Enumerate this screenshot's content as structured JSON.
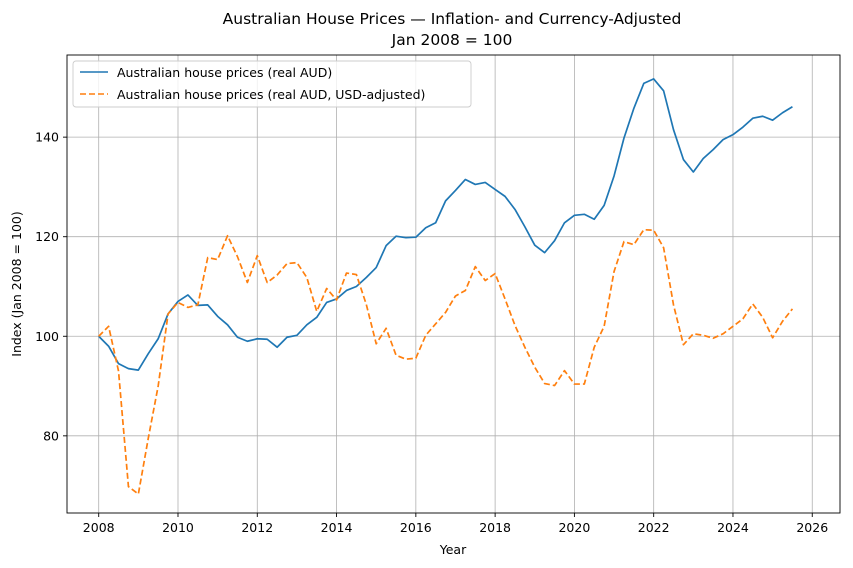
{
  "chart_data": {
    "type": "line",
    "title": "Australian House Prices — Inflation- and Currency-Adjusted",
    "subtitle": "Jan 2008 = 100",
    "xlabel": "Year",
    "ylabel": "Index (Jan 2008 = 100)",
    "xlim": [
      2007.2,
      2026.7
    ],
    "ylim": [
      64.5,
      156.5
    ],
    "xticks": [
      2008,
      2010,
      2012,
      2014,
      2016,
      2018,
      2020,
      2022,
      2024,
      2026
    ],
    "yticks": [
      80,
      100,
      120,
      140
    ],
    "grid": true,
    "legend_position": "top-left",
    "x": [
      2008.0,
      2008.25,
      2008.5,
      2008.75,
      2009.0,
      2009.25,
      2009.5,
      2009.75,
      2010.0,
      2010.25,
      2010.5,
      2010.75,
      2011.0,
      2011.25,
      2011.5,
      2011.75,
      2012.0,
      2012.25,
      2012.5,
      2012.75,
      2013.0,
      2013.25,
      2013.5,
      2013.75,
      2014.0,
      2014.25,
      2014.5,
      2014.75,
      2015.0,
      2015.25,
      2015.5,
      2015.75,
      2016.0,
      2016.25,
      2016.5,
      2016.75,
      2017.0,
      2017.25,
      2017.5,
      2017.75,
      2018.0,
      2018.25,
      2018.5,
      2018.75,
      2019.0,
      2019.25,
      2019.5,
      2019.75,
      2020.0,
      2020.25,
      2020.5,
      2020.75,
      2021.0,
      2021.25,
      2021.5,
      2021.75,
      2022.0,
      2022.25,
      2022.5,
      2022.75,
      2023.0,
      2023.25,
      2023.5,
      2023.75,
      2024.0,
      2024.25,
      2024.5,
      2024.75,
      2025.0,
      2025.25,
      2025.5
    ],
    "series": [
      {
        "name": "Australian house prices (real AUD)",
        "color": "#1f77b4",
        "style": "solid",
        "values": [
          100,
          98,
          94.5,
          93.5,
          93.2,
          96.5,
          99.5,
          104.5,
          107,
          108.3,
          106.2,
          106.3,
          104,
          102.3,
          99.8,
          99,
          99.5,
          99.4,
          97.8,
          99.8,
          100.2,
          102.3,
          103.8,
          106.8,
          107.5,
          109.2,
          110,
          111.8,
          113.8,
          118.2,
          120.1,
          119.8,
          119.9,
          121.8,
          122.8,
          127.2,
          129.3,
          131.5,
          130.5,
          130.9,
          129.5,
          128.1,
          125.5,
          122,
          118.3,
          116.8,
          119.2,
          122.8,
          124.3,
          124.5,
          123.5,
          126.3,
          132.2,
          139.8,
          145.8,
          150.8,
          151.7,
          149.3,
          141.5,
          135.5,
          133,
          135.7,
          137.5,
          139.5,
          140.5,
          142,
          143.8,
          144.2,
          143.4,
          144.9,
          146.1
        ]
      },
      {
        "name": "Australian house prices (real AUD, USD-adjusted)",
        "color": "#ff7f0e",
        "style": "dashed",
        "values": [
          100,
          102,
          93,
          69.8,
          68.3,
          79.5,
          90,
          104.5,
          106.8,
          105.8,
          106.3,
          115.8,
          115.4,
          120.2,
          116,
          110.8,
          116.2,
          110.8,
          112.3,
          114.6,
          114.8,
          111.8,
          105,
          109.6,
          107.3,
          112.7,
          112.4,
          106.4,
          98.5,
          101.6,
          96.2,
          95.4,
          95.6,
          100.2,
          102.5,
          104.8,
          108.1,
          109.2,
          114,
          111.2,
          112.6,
          107.5,
          102.2,
          97.8,
          93.8,
          90.5,
          90.1,
          93.1,
          90.4,
          90.4,
          97.8,
          102,
          113,
          119,
          118.4,
          121.4,
          121.3,
          117.8,
          106.3,
          98.3,
          100.5,
          100.2,
          99.6,
          100.5,
          102,
          103.5,
          106.5,
          103.8,
          99.7,
          103,
          105.5
        ]
      }
    ]
  }
}
